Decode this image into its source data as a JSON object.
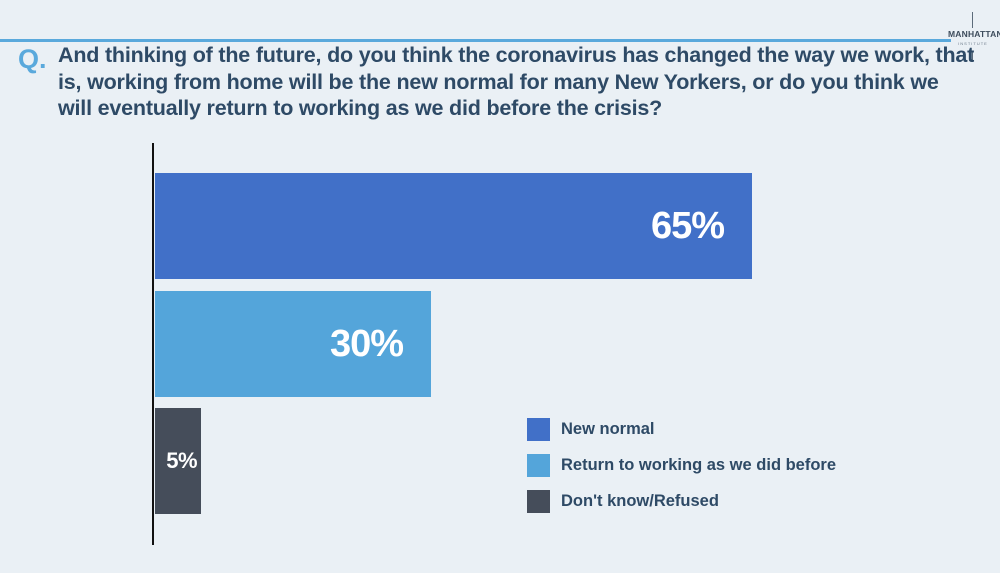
{
  "logo": {
    "name": "MANHATTAN",
    "sub": "INSTITUTE"
  },
  "question": {
    "prefix": "Q.",
    "text": "And thinking of the future, do you think the coronavirus has changed the way we work, that is, working from home will be the new normal for many New Yorkers, or do you think we will eventually return to working as we did before the crisis?"
  },
  "colors": {
    "accent": "#5aa9dc",
    "title": "#2e4a66"
  },
  "chart_data": {
    "type": "bar",
    "orientation": "horizontal",
    "categories": [
      "New normal",
      "Return to working as we did before",
      "Don't know/Refused"
    ],
    "values": [
      65,
      30,
      5
    ],
    "value_labels": [
      "65%",
      "30%",
      "5%"
    ],
    "colors": [
      "#4170c8",
      "#54a5da",
      "#454d5a"
    ],
    "xlim": [
      0,
      100
    ],
    "grid": false,
    "legend_position": "bottom-right"
  }
}
